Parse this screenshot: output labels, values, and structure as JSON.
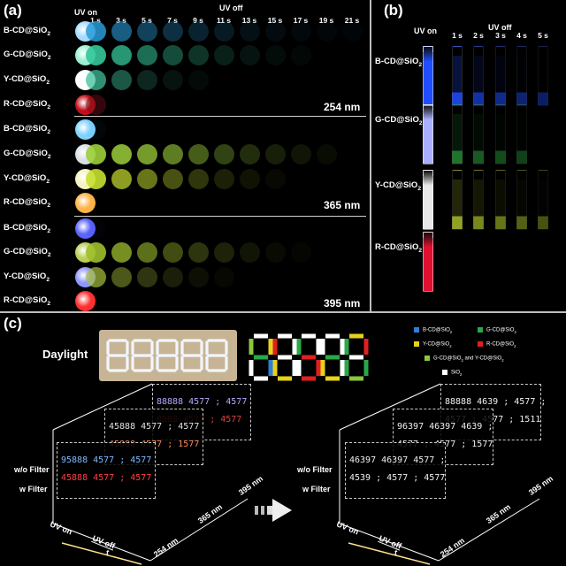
{
  "panel_a": {
    "label": "(a)",
    "header_uv_on": "UV on",
    "header_uv_off": "UV off",
    "times": [
      "1 s",
      "3 s",
      "5 s",
      "7 s",
      "9 s",
      "11 s",
      "13 s",
      "15 s",
      "17 s",
      "19 s",
      "21 s"
    ],
    "groups": [
      {
        "wavelength": "254 nm",
        "rows": [
          {
            "label": "B-CD@SiO",
            "sub": "2"
          },
          {
            "label": "G-CD@SiO",
            "sub": "2"
          },
          {
            "label": "Y-CD@SiO",
            "sub": "2"
          },
          {
            "label": "R-CD@SiO",
            "sub": "2"
          }
        ]
      },
      {
        "wavelength": "365 nm",
        "rows": [
          {
            "label": "B-CD@SiO",
            "sub": "2"
          },
          {
            "label": "G-CD@SiO",
            "sub": "2"
          },
          {
            "label": "Y-CD@SiO",
            "sub": "2"
          },
          {
            "label": "R-CD@SiO",
            "sub": "2"
          }
        ]
      },
      {
        "wavelength": "395 nm",
        "rows": [
          {
            "label": "B-CD@SiO",
            "sub": "2"
          },
          {
            "label": "G-CD@SiO",
            "sub": "2"
          },
          {
            "label": "Y-CD@SiO",
            "sub": "2"
          },
          {
            "label": "R-CD@SiO",
            "sub": "2"
          }
        ]
      }
    ]
  },
  "panel_b": {
    "label": "(b)",
    "header_uv_on": "UV on",
    "header_uv_off": "UV off",
    "times": [
      "1 s",
      "2 s",
      "3 s",
      "4 s",
      "5 s"
    ],
    "rows": [
      {
        "label": "B-CD@SiO",
        "sub": "2",
        "color": "#1f4dff"
      },
      {
        "label": "G-CD@SiO",
        "sub": "2",
        "color": "#aab0ff"
      },
      {
        "label": "Y-CD@SiO",
        "sub": "2",
        "color": "#e8e8e8"
      },
      {
        "label": "R-CD@SiO",
        "sub": "2",
        "color": "#e01030"
      }
    ]
  },
  "panel_c": {
    "label": "(c)",
    "daylight": "Daylight",
    "legend": [
      {
        "label": "B-CD@SiO",
        "sub": "2",
        "color": "#2f7fd6"
      },
      {
        "label": "G-CD@SiO",
        "sub": "2",
        "color": "#2aa84a"
      },
      {
        "label": "Y-CD@SiO",
        "sub": "2",
        "color": "#e6d21a"
      },
      {
        "label": "R-CD@SiO",
        "sub": "2",
        "color": "#e02020"
      },
      {
        "label": "G-CD@SiO",
        "sub": "2",
        "suffix": " and Y-CD@SiO",
        "sub2": "2",
        "color": "#8cc63f"
      },
      {
        "label": "SiO",
        "sub": "2",
        "color": "#ffffff"
      }
    ],
    "left_diagram": {
      "wo_filter": "w/o Filter",
      "w_filter": "w Filter",
      "uv_on": "UV on",
      "uv_off": "UV off",
      "t": "t",
      "wl": [
        "254 nm",
        "365 nm",
        "395 nm"
      ],
      "rows_back": [
        "88888  4577 ;  4577",
        "8888  4577 ;  4577"
      ],
      "rows_mid": [
        "45888  4577 ;  4577",
        "45888  4577 ;  1577"
      ],
      "rows_front": [
        "95888  4577 ;  4577",
        "45888  4577 ;  4577"
      ]
    },
    "right_diagram": {
      "wo_filter": "w/o Filter",
      "w_filter": "w Filter",
      "uv_on": "UV on",
      "uv_off": "UV off",
      "t": "t",
      "wl": [
        "254 nm",
        "365 nm",
        "395 nm"
      ],
      "rows_back": [
        "88888  4639 ;  4577 ;",
        "4577 ;  4577 ;  1511"
      ],
      "rows_mid": [
        "96397  46397  4639 ;",
        "4577 ;  4577 ;  1577"
      ],
      "rows_front": [
        "46397  46397  4577 ;",
        "4539 ;  4577 ;  4577"
      ]
    }
  }
}
